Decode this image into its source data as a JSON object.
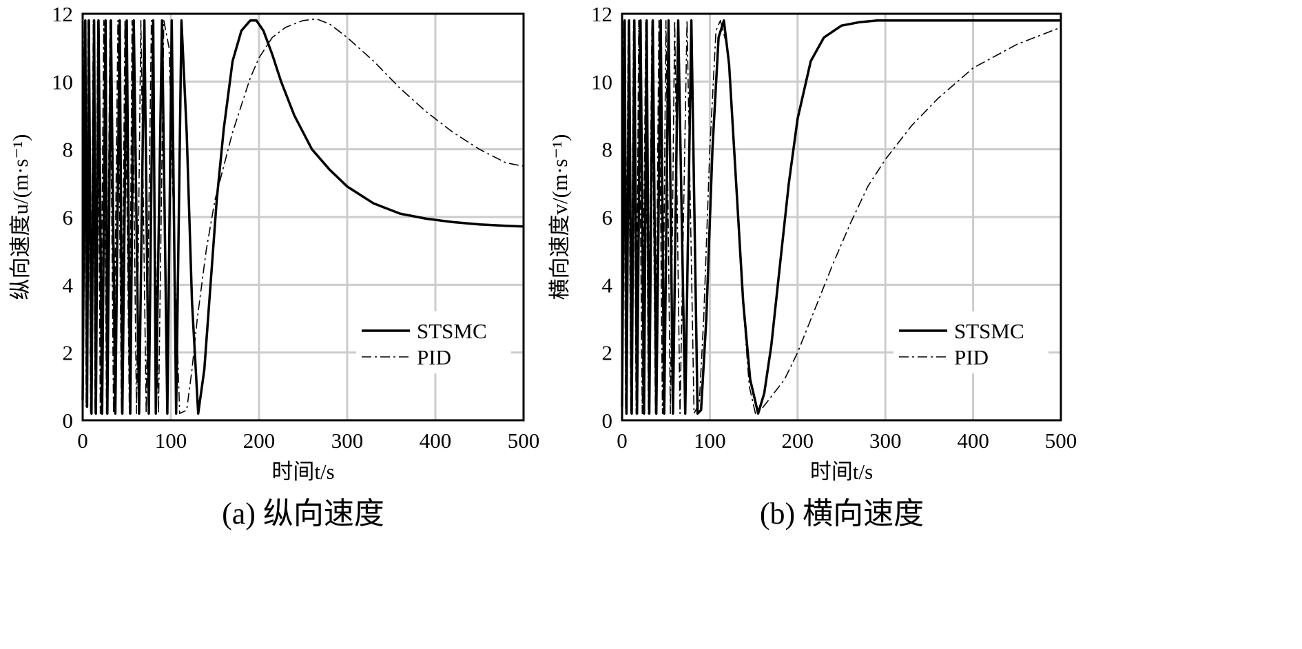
{
  "chart_data": [
    {
      "type": "line",
      "caption": "(a) 纵向速度",
      "xlabel": "时间t/s",
      "ylabel": "纵向速度u/(m·s⁻¹)",
      "xlim": [
        0,
        500
      ],
      "ylim": [
        0,
        12
      ],
      "xticks": [
        0,
        100,
        200,
        300,
        400,
        500
      ],
      "yticks": [
        0,
        2,
        4,
        6,
        8,
        10,
        12
      ],
      "grid": true,
      "legend": "lower-right",
      "series": [
        {
          "name": "STSMC",
          "style": "solid",
          "x": [
            0,
            3,
            5,
            7,
            10,
            13,
            15,
            18,
            22,
            26,
            28,
            32,
            37,
            42,
            45,
            50,
            54,
            58,
            64,
            70,
            75,
            80,
            83,
            90,
            96,
            101,
            106,
            112,
            118,
            124,
            131,
            138,
            145,
            152,
            160,
            170,
            180,
            190,
            197,
            205,
            215,
            225,
            240,
            260,
            280,
            300,
            330,
            360,
            390,
            420,
            450,
            480,
            500
          ],
          "y": [
            0.6,
            11.8,
            0.4,
            11.8,
            0.2,
            11.8,
            0.2,
            11.8,
            0.2,
            11.8,
            0.2,
            11.8,
            0.2,
            11.8,
            0.2,
            11.8,
            0.2,
            11.8,
            0.2,
            11.8,
            0.2,
            11.8,
            0.2,
            11.8,
            0.2,
            11.8,
            0.2,
            11.8,
            8.5,
            3.5,
            0.2,
            1.5,
            4.0,
            6.5,
            8.6,
            10.6,
            11.5,
            11.8,
            11.8,
            11.5,
            10.8,
            10.0,
            9.0,
            8.0,
            7.4,
            6.9,
            6.4,
            6.1,
            5.95,
            5.85,
            5.78,
            5.74,
            5.72
          ]
        },
        {
          "name": "PID",
          "style": "dash-dot",
          "x": [
            0,
            2,
            4,
            6,
            9,
            12,
            14,
            17,
            20,
            24,
            27,
            31,
            35,
            40,
            44,
            48,
            53,
            56,
            61,
            66,
            72,
            78,
            86,
            92,
            98,
            104,
            110,
            118,
            124,
            130,
            140,
            150,
            160,
            170,
            180,
            190,
            200,
            215,
            230,
            250,
            265,
            280,
            300,
            330,
            360,
            390,
            420,
            450,
            480,
            500
          ],
          "y": [
            0.3,
            11.8,
            0.4,
            11.8,
            0.2,
            11.8,
            0.2,
            11.8,
            0.2,
            11.8,
            0.2,
            11.8,
            0.2,
            11.8,
            0.2,
            11.8,
            0.2,
            11.8,
            0.2,
            11.8,
            0.2,
            11.8,
            0.2,
            11.8,
            11.0,
            5.0,
            0.2,
            0.3,
            1.5,
            3.0,
            5.0,
            6.5,
            7.5,
            8.5,
            9.3,
            10.1,
            10.7,
            11.3,
            11.6,
            11.8,
            11.85,
            11.7,
            11.3,
            10.6,
            9.8,
            9.1,
            8.5,
            8.0,
            7.6,
            7.5
          ]
        }
      ]
    },
    {
      "type": "line",
      "caption": "(b) 横向速度",
      "xlabel": "时间t/s",
      "ylabel": "横向速度v/(m·s⁻¹)",
      "xlim": [
        0,
        500
      ],
      "ylim": [
        0,
        12
      ],
      "xticks": [
        0,
        100,
        200,
        300,
        400,
        500
      ],
      "yticks": [
        0,
        2,
        4,
        6,
        8,
        10,
        12
      ],
      "grid": true,
      "legend": "lower-right",
      "series": [
        {
          "name": "STSMC",
          "style": "solid",
          "x": [
            0,
            3,
            5,
            8,
            11,
            14,
            17,
            21,
            25,
            28,
            31,
            35,
            39,
            44,
            48,
            53,
            58,
            64,
            72,
            79,
            86,
            90,
            96,
            103,
            110,
            116,
            122,
            130,
            138,
            146,
            155,
            162,
            170,
            180,
            190,
            200,
            215,
            230,
            250,
            270,
            290,
            320,
            360,
            400,
            450,
            500
          ],
          "y": [
            0.4,
            11.8,
            0.2,
            11.8,
            0.2,
            11.8,
            0.2,
            11.8,
            0.2,
            11.8,
            0.2,
            11.8,
            0.2,
            11.8,
            0.2,
            11.8,
            0.2,
            11.8,
            0.2,
            11.8,
            0.2,
            0.3,
            3.0,
            8.0,
            11.3,
            11.8,
            10.5,
            7.0,
            3.5,
            1.2,
            0.2,
            0.8,
            2.2,
            4.6,
            7.0,
            8.9,
            10.6,
            11.3,
            11.65,
            11.75,
            11.8,
            11.8,
            11.8,
            11.8,
            11.8,
            11.8
          ]
        },
        {
          "name": "PID",
          "style": "dash-dot",
          "x": [
            0,
            2,
            4,
            7,
            10,
            13,
            16,
            19,
            23,
            27,
            30,
            34,
            38,
            42,
            46,
            50,
            55,
            60,
            66,
            74,
            82,
            88,
            93,
            100,
            107,
            112,
            120,
            128,
            136,
            145,
            152,
            158,
            170,
            185,
            200,
            220,
            240,
            260,
            280,
            300,
            330,
            360,
            400,
            450,
            500
          ],
          "y": [
            0.3,
            11.8,
            0.3,
            11.8,
            0.2,
            11.8,
            0.2,
            11.8,
            0.2,
            11.8,
            0.2,
            11.8,
            0.2,
            11.8,
            0.2,
            11.8,
            0.2,
            11.8,
            0.2,
            11.8,
            0.2,
            0.5,
            3.0,
            8.0,
            11.5,
            11.8,
            11.0,
            8.0,
            4.0,
            1.0,
            0.2,
            0.3,
            0.7,
            1.2,
            2.0,
            3.3,
            4.6,
            5.8,
            6.9,
            7.7,
            8.7,
            9.5,
            10.4,
            11.1,
            11.6
          ]
        }
      ]
    }
  ]
}
